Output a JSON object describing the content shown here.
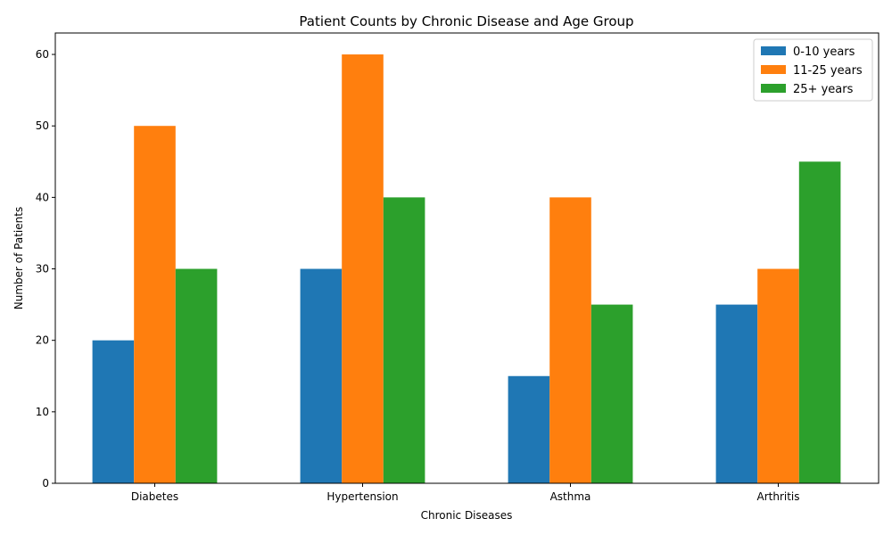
{
  "chart_data": {
    "type": "bar",
    "title": "Patient Counts by Chronic Disease and Age Group",
    "xlabel": "Chronic Diseases",
    "ylabel": "Number of Patients",
    "categories": [
      "Diabetes",
      "Hypertension",
      "Asthma",
      "Arthritis"
    ],
    "series": [
      {
        "name": "0-10 years",
        "color": "#1f77b4",
        "values": [
          20,
          30,
          15,
          25
        ]
      },
      {
        "name": "11-25 years",
        "color": "#ff7f0e",
        "values": [
          50,
          60,
          40,
          30
        ]
      },
      {
        "name": "25+ years",
        "color": "#2ca02c",
        "values": [
          30,
          40,
          25,
          45
        ]
      }
    ],
    "ylim": [
      0,
      63
    ],
    "yticks": [
      0,
      10,
      20,
      30,
      40,
      50,
      60
    ],
    "grid": false,
    "legend_position": "top-right"
  }
}
